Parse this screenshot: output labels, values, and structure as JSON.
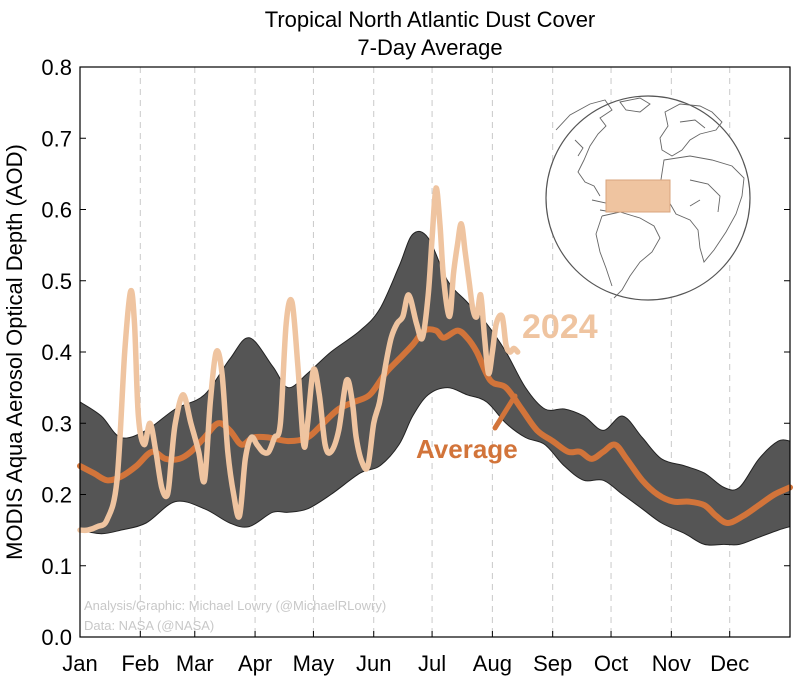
{
  "chart_data": {
    "type": "line",
    "title": "Tropical North Atlantic Dust Cover",
    "subtitle": "7-Day Average",
    "ylabel": "MODIS Aqua Aerosol Optical Depth (AOD)",
    "xlabel": "",
    "ylim": [
      0,
      0.8
    ],
    "yticks": [
      "0.0",
      "0.1",
      "0.2",
      "0.3",
      "0.4",
      "0.5",
      "0.6",
      "0.7",
      "0.8"
    ],
    "xlim": [
      1,
      366
    ],
    "months": [
      {
        "label": "Jan",
        "day": 1
      },
      {
        "label": "Feb",
        "day": 32
      },
      {
        "label": "Mar",
        "day": 60
      },
      {
        "label": "Apr",
        "day": 91
      },
      {
        "label": "May",
        "day": 121
      },
      {
        "label": "Jun",
        "day": 152
      },
      {
        "label": "Jul",
        "day": 182
      },
      {
        "label": "Aug",
        "day": 213
      },
      {
        "label": "Sep",
        "day": 244
      },
      {
        "label": "Oct",
        "day": 274
      },
      {
        "label": "Nov",
        "day": 305
      },
      {
        "label": "Dec",
        "day": 335
      }
    ],
    "band": {
      "name": "Range",
      "x": [
        1,
        12,
        22,
        35,
        50,
        65,
        78,
        88,
        100,
        108,
        118,
        130,
        145,
        155,
        165,
        172,
        180,
        190,
        200,
        210,
        220,
        230,
        240,
        250,
        260,
        270,
        280,
        290,
        300,
        312,
        322,
        332,
        340,
        350,
        360,
        366
      ],
      "upper": [
        0.33,
        0.31,
        0.28,
        0.29,
        0.32,
        0.34,
        0.39,
        0.42,
        0.38,
        0.35,
        0.37,
        0.4,
        0.43,
        0.46,
        0.52,
        0.565,
        0.56,
        0.5,
        0.47,
        0.44,
        0.4,
        0.35,
        0.32,
        0.32,
        0.31,
        0.29,
        0.31,
        0.28,
        0.25,
        0.24,
        0.23,
        0.21,
        0.21,
        0.25,
        0.275,
        0.275
      ],
      "lower": [
        0.15,
        0.145,
        0.15,
        0.16,
        0.19,
        0.18,
        0.16,
        0.155,
        0.175,
        0.175,
        0.18,
        0.2,
        0.23,
        0.24,
        0.27,
        0.31,
        0.34,
        0.35,
        0.34,
        0.33,
        0.3,
        0.28,
        0.27,
        0.24,
        0.22,
        0.22,
        0.2,
        0.18,
        0.16,
        0.145,
        0.13,
        0.13,
        0.13,
        0.14,
        0.15,
        0.155
      ]
    },
    "series": [
      {
        "name": "Average",
        "color": "#d2743a",
        "x": [
          1,
          8,
          15,
          22,
          30,
          38,
          45,
          52,
          58,
          65,
          72,
          78,
          84,
          90,
          98,
          108,
          118,
          126,
          134,
          142,
          150,
          158,
          165,
          172,
          178,
          184,
          188,
          195,
          200,
          205,
          212,
          220,
          228,
          236,
          244,
          252,
          258,
          264,
          270,
          276,
          282,
          290,
          298,
          306,
          314,
          322,
          328,
          334,
          342,
          350,
          358,
          366
        ],
        "values": [
          0.24,
          0.23,
          0.22,
          0.225,
          0.24,
          0.26,
          0.25,
          0.25,
          0.26,
          0.28,
          0.3,
          0.29,
          0.27,
          0.28,
          0.28,
          0.275,
          0.28,
          0.3,
          0.32,
          0.33,
          0.34,
          0.37,
          0.39,
          0.41,
          0.43,
          0.43,
          0.42,
          0.43,
          0.42,
          0.4,
          0.36,
          0.35,
          0.32,
          0.29,
          0.275,
          0.26,
          0.26,
          0.25,
          0.26,
          0.27,
          0.25,
          0.22,
          0.2,
          0.19,
          0.19,
          0.185,
          0.17,
          0.16,
          0.17,
          0.185,
          0.2,
          0.21
        ]
      },
      {
        "name": "2024",
        "color": "#efc4a0",
        "x": [
          1,
          5,
          10,
          15,
          20,
          24,
          27,
          29,
          31,
          34,
          37,
          40,
          43,
          46,
          48,
          50,
          54,
          58,
          62,
          65,
          68,
          71,
          74,
          77,
          80,
          83,
          86,
          89,
          92,
          95,
          98,
          101,
          104,
          107,
          110,
          113,
          116,
          118,
          121,
          124,
          127,
          130,
          134,
          138,
          141,
          143,
          146,
          149,
          152,
          155,
          158,
          161,
          164,
          167,
          170,
          174,
          177,
          180,
          182,
          184,
          186,
          188,
          191,
          193,
          195,
          197,
          199,
          201,
          203,
          205,
          207,
          209,
          211,
          213,
          215,
          218,
          220,
          222,
          224,
          226
        ],
        "values": [
          0.15,
          0.15,
          0.155,
          0.165,
          0.22,
          0.4,
          0.485,
          0.44,
          0.31,
          0.27,
          0.3,
          0.26,
          0.21,
          0.2,
          0.25,
          0.3,
          0.34,
          0.3,
          0.26,
          0.22,
          0.33,
          0.4,
          0.37,
          0.26,
          0.2,
          0.17,
          0.25,
          0.28,
          0.27,
          0.26,
          0.26,
          0.28,
          0.3,
          0.44,
          0.47,
          0.38,
          0.27,
          0.3,
          0.375,
          0.34,
          0.27,
          0.26,
          0.29,
          0.36,
          0.33,
          0.28,
          0.245,
          0.24,
          0.3,
          0.33,
          0.38,
          0.42,
          0.44,
          0.45,
          0.48,
          0.44,
          0.42,
          0.48,
          0.56,
          0.63,
          0.58,
          0.5,
          0.45,
          0.51,
          0.55,
          0.58,
          0.54,
          0.5,
          0.46,
          0.45,
          0.48,
          0.42,
          0.37,
          0.4,
          0.44,
          0.45,
          0.41,
          0.4,
          0.405,
          0.4
        ]
      }
    ],
    "annotations": {
      "series_2024_label": "2024",
      "average_label": "Average",
      "credit_line_1": "Analysis/Graphic: Michael Lowry (@MichaelRLowry)",
      "credit_line_2": "Data: NASA (@NASA)"
    },
    "inset_map": {
      "description_icon": "globe-icon",
      "region_color": "#efc4a0"
    },
    "colors": {
      "band": "#555555",
      "average": "#d2743a",
      "year2024": "#efc4a0"
    }
  }
}
